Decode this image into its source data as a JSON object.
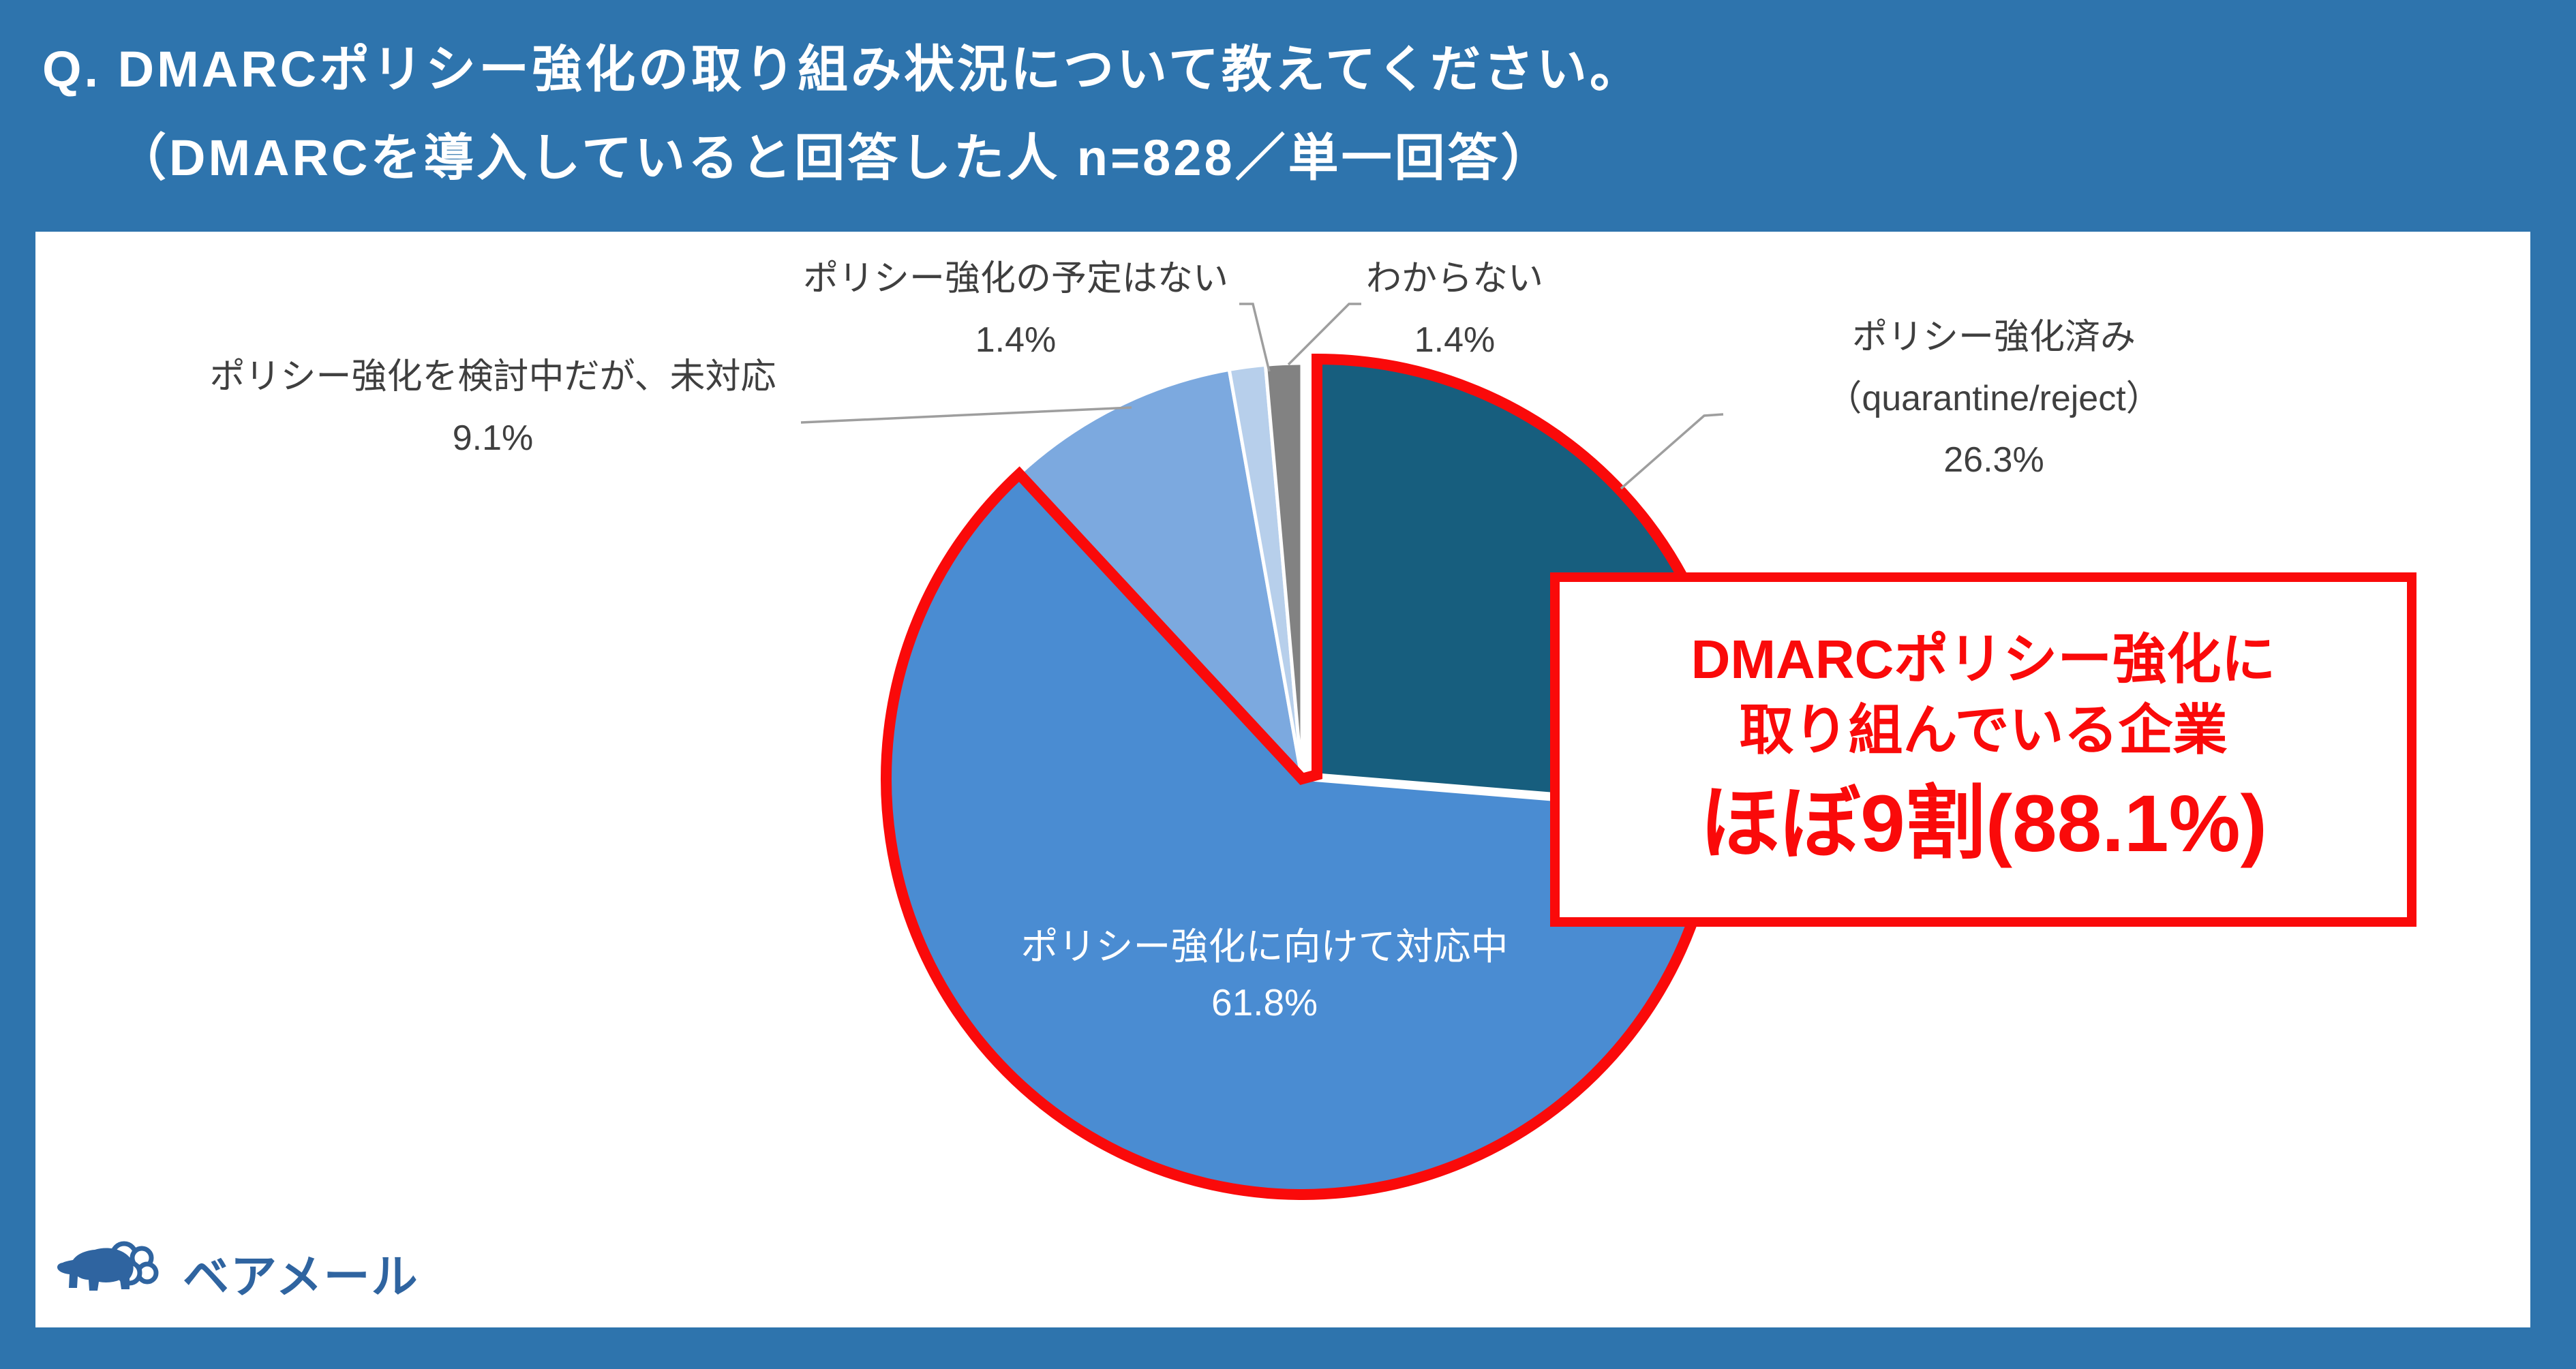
{
  "title": {
    "line1": "Q. DMARCポリシー強化の取り組み状況について教えてください。",
    "line2": "（DMARCを導入していると回答した人 n=828／単一回答）"
  },
  "chart_data": {
    "type": "pie",
    "unit": "%",
    "n_label": "n=828",
    "start_angle_deg": 0,
    "direction": "clockwise",
    "slices": [
      {
        "label": "ポリシー強化済み（quarantine/reject）",
        "label_line1": "ポリシー強化済み",
        "label_line2": "（quarantine/reject）",
        "value": 26.3,
        "pct_text": "26.3%",
        "color": "#175E7E",
        "highlighted": true
      },
      {
        "label": "ポリシー強化に向けて対応中",
        "value": 61.8,
        "pct_text": "61.8%",
        "color": "#4A8CD2",
        "highlighted": true
      },
      {
        "label": "ポリシー強化を検討中だが、未対応",
        "value": 9.1,
        "pct_text": "9.1%",
        "color": "#7CA9DF",
        "highlighted": false
      },
      {
        "label": "ポリシー強化の予定はない",
        "value": 1.4,
        "pct_text": "1.4%",
        "color": "#B7CFEB",
        "highlighted": false
      },
      {
        "label": "わからない",
        "value": 1.4,
        "pct_text": "1.4%",
        "color": "#828282",
        "highlighted": false
      }
    ],
    "highlight": {
      "total_pct": 88.1,
      "slice_indexes": [
        0,
        1
      ],
      "outline_color": "#FA0A0A"
    }
  },
  "callout": {
    "line1": "DMARCポリシー強化に",
    "line2": "取り組んでいる企業",
    "line3": "ほぼ9割(88.1%)"
  },
  "logo": {
    "brand": "ベアメール"
  },
  "colors": {
    "background": "#2E74AD",
    "panel": "#FFFFFF",
    "highlight_red": "#FA0A0A",
    "label_text": "#3F3F3F",
    "leader_line": "#9E9E9E",
    "logo_blue": "#2F64A0"
  }
}
